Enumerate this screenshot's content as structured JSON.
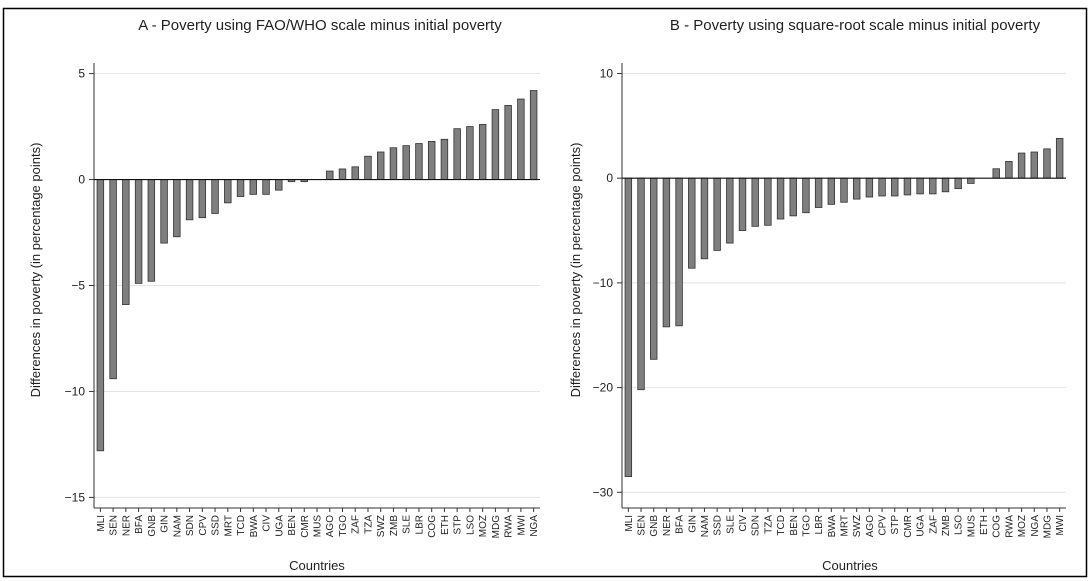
{
  "chart_data": [
    {
      "type": "bar",
      "title": "A - Poverty using FAO/WHO scale minus initial poverty",
      "xlabel": "Countries",
      "ylabel": "Differences in poverty (in percentage points)",
      "ylim": [
        -15.5,
        5.5
      ],
      "yticks": [
        5,
        0,
        -5,
        -10,
        -15
      ],
      "grid": true,
      "categories": [
        "MLI",
        "SEN",
        "NER",
        "BFA",
        "GNB",
        "GIN",
        "NAM",
        "SDN",
        "CPV",
        "SSD",
        "MRT",
        "TCD",
        "BWA",
        "CIV",
        "UGA",
        "BEN",
        "CMR",
        "MUS",
        "AGO",
        "TGO",
        "ZAF",
        "TZA",
        "SWZ",
        "ZMB",
        "SLE",
        "LBR",
        "COG",
        "ETH",
        "STP",
        "LSO",
        "MOZ",
        "MDG",
        "RWA",
        "MWI",
        "NGA"
      ],
      "values": [
        -12.8,
        -9.4,
        -5.9,
        -4.9,
        -4.8,
        -3.0,
        -2.7,
        -1.9,
        -1.8,
        -1.6,
        -1.1,
        -0.8,
        -0.7,
        -0.7,
        -0.5,
        -0.1,
        -0.1,
        0.0,
        0.4,
        0.5,
        0.6,
        1.1,
        1.3,
        1.5,
        1.6,
        1.7,
        1.8,
        1.9,
        2.4,
        2.5,
        2.6,
        3.3,
        3.5,
        3.8,
        4.2
      ]
    },
    {
      "type": "bar",
      "title": "B - Poverty using square-root scale minus initial poverty",
      "xlabel": "Countries",
      "ylabel": "Differences in poverty (in percentage points)",
      "ylim": [
        -31.5,
        11
      ],
      "yticks": [
        10,
        0,
        -10,
        -20,
        -30
      ],
      "grid": true,
      "categories": [
        "MLI",
        "SEN",
        "GNB",
        "NER",
        "BFA",
        "GIN",
        "NAM",
        "SSD",
        "SLE",
        "CIV",
        "SDN",
        "TZA",
        "TCD",
        "BEN",
        "TGO",
        "LBR",
        "BWA",
        "MRT",
        "SWZ",
        "AGO",
        "CPV",
        "STP",
        "CMR",
        "UGA",
        "ZAF",
        "ZMB",
        "LSO",
        "MUS",
        "ETH",
        "COG",
        "RWA",
        "MOZ",
        "NGA",
        "MDG",
        "MWI"
      ],
      "values": [
        -28.5,
        -20.2,
        -17.3,
        -14.2,
        -14.1,
        -8.6,
        -7.7,
        -6.9,
        -6.2,
        -5.0,
        -4.6,
        -4.5,
        -3.9,
        -3.6,
        -3.3,
        -2.8,
        -2.5,
        -2.3,
        -2.0,
        -1.8,
        -1.7,
        -1.7,
        -1.6,
        -1.5,
        -1.5,
        -1.3,
        -1.0,
        -0.5,
        0.0,
        0.9,
        1.6,
        2.4,
        2.5,
        2.8,
        3.8
      ]
    }
  ]
}
